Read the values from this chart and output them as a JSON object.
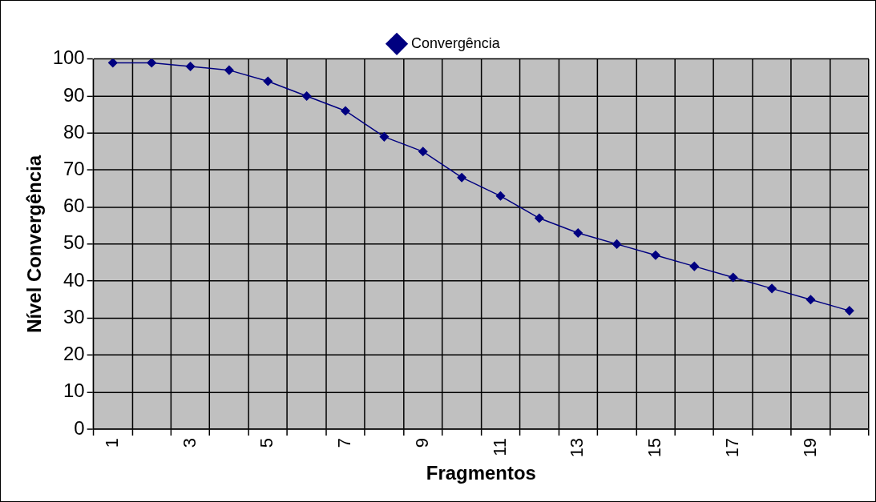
{
  "chart_data": {
    "type": "line",
    "xlabel": "Fragmentos",
    "ylabel": "Nível Convergência",
    "categories": [
      "1",
      null,
      "3",
      null,
      "5",
      null,
      "7",
      null,
      "9",
      null,
      "11",
      null,
      "13",
      null,
      "15",
      null,
      "17",
      null,
      "19",
      null
    ],
    "series": [
      {
        "name": "Convergência",
        "color": "#000080",
        "values": [
          99,
          99,
          98,
          97,
          94,
          90,
          86,
          79,
          75,
          68,
          63,
          57,
          53,
          50,
          47,
          44,
          41,
          38,
          35,
          32
        ]
      }
    ],
    "ylim": [
      0,
      100
    ],
    "yticks": [
      0,
      10,
      20,
      30,
      40,
      50,
      60,
      70,
      80,
      90,
      100
    ],
    "grid": true,
    "legend": "top",
    "marker": "diamond",
    "line_style": "solid"
  }
}
